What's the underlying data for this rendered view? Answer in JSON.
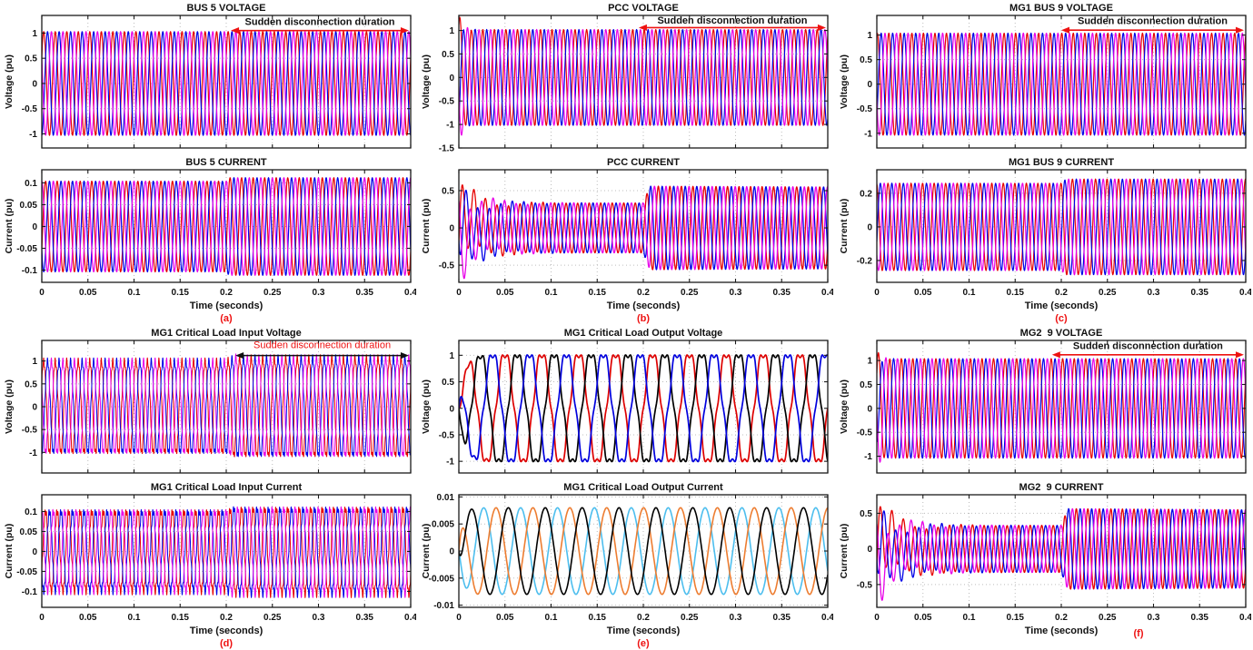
{
  "figure": {
    "background": "#ffffff",
    "columns": 3,
    "axis_color": "#1a1a1a",
    "grid_color": "#bdbdbd",
    "label_color": "#111111",
    "letter_color": "#ee1111",
    "xlabel": "Time (seconds)"
  },
  "annotation_text": "Sudden disconnection duration",
  "chart_data": [
    {
      "id": "bus5-voltage",
      "panel": "a",
      "position": "top",
      "type": "line",
      "title": "BUS 5 VOLTAGE",
      "ylabel": "Voltage (pu)",
      "xlabel": null,
      "show_xtick_labels": false,
      "xlim": [
        0,
        0.4
      ],
      "xticks": [
        0,
        0.05,
        0.1,
        0.15,
        0.2,
        0.25,
        0.3,
        0.35,
        0.4
      ],
      "ylim": [
        -1.28,
        1.35
      ],
      "yticks": [
        1,
        0.5,
        0,
        -0.5,
        -1
      ],
      "grid": true,
      "line_width": 1.2,
      "annotation": {
        "text": "Sudden disconnection duration",
        "text_color": "#111111",
        "text_bold": true,
        "arrow_color": "#ee1111",
        "x_start": 0.205,
        "x_end": 0.398,
        "arrow_y": 1.05,
        "text_y": 1.16
      },
      "waveform": {
        "kind": "three-phase-sine",
        "cycles": 32,
        "base_phase_deg": 30,
        "amplitude": 1.03,
        "samples": 1100,
        "series": [
          {
            "name": "phase-a",
            "color": "#e60000",
            "offset_deg": 0
          },
          {
            "name": "phase-b",
            "color": "#0000e8",
            "offset_deg": -120
          },
          {
            "name": "phase-c",
            "color": "#e800e8",
            "offset_deg": -240
          }
        ]
      }
    },
    {
      "id": "bus5-current",
      "panel": "a",
      "position": "bottom",
      "type": "line",
      "title": "BUS 5 CURRENT",
      "ylabel": "Current (pu)",
      "xlabel": "Time (seconds)",
      "show_xtick_labels": true,
      "xlim": [
        0,
        0.4
      ],
      "xticks": [
        0,
        0.05,
        0.1,
        0.15,
        0.2,
        0.25,
        0.3,
        0.35,
        0.4
      ],
      "ylim": [
        -0.128,
        0.13
      ],
      "yticks": [
        0.1,
        0.05,
        0,
        -0.05,
        -0.1
      ],
      "grid": true,
      "line_width": 1.2,
      "letter": {
        "text": "(a)",
        "position": "below"
      },
      "waveform": {
        "kind": "three-phase-sine",
        "cycles": 32,
        "base_phase_deg": -30,
        "samples": 1100,
        "envelope": [
          [
            0,
            0.2,
            0.104,
            0.104,
            "lin"
          ],
          [
            0.2,
            0.203,
            0.104,
            0.112,
            "lin"
          ],
          [
            0.203,
            0.4,
            0.112,
            0.112,
            "lin"
          ]
        ],
        "series": [
          {
            "name": "phase-a",
            "color": "#e60000",
            "offset_deg": 0
          },
          {
            "name": "phase-b",
            "color": "#0000e8",
            "offset_deg": -120
          },
          {
            "name": "phase-c",
            "color": "#e800e8",
            "offset_deg": -240
          }
        ]
      }
    },
    {
      "id": "pcc-voltage",
      "panel": "b",
      "position": "top",
      "type": "line",
      "title": "PCC VOLTAGE",
      "ylabel": "Voltage (pu)",
      "xlabel": null,
      "show_xtick_labels": false,
      "xlim": [
        0,
        0.4
      ],
      "xticks": [
        0,
        0.05,
        0.1,
        0.15,
        0.2,
        0.25,
        0.3,
        0.35,
        0.4
      ],
      "ylim": [
        -1.5,
        1.32
      ],
      "yticks": [
        1,
        0.5,
        0,
        -0.5,
        -1,
        -1.5
      ],
      "grid": true,
      "line_width": 1.2,
      "annotation": {
        "text": "Sudden disconnection duration",
        "text_color": "#111111",
        "text_bold": true,
        "arrow_color": "#ee1111",
        "x_start": 0.195,
        "x_end": 0.398,
        "arrow_y": 1.06,
        "text_y": 1.15
      },
      "waveform": {
        "kind": "three-phase-sine",
        "cycles": 32,
        "base_phase_deg": 60,
        "samples": 1100,
        "envelope": [
          [
            0,
            0.018,
            1.3,
            1.02,
            "exp"
          ],
          [
            0.018,
            0.4,
            1.02,
            1.02,
            "lin"
          ]
        ],
        "wobble": {
          "amp": 0.22,
          "freq_hz": 55,
          "decay_s": 0.005
        },
        "series": [
          {
            "name": "phase-a",
            "color": "#e60000",
            "offset_deg": 0
          },
          {
            "name": "phase-b",
            "color": "#0000e8",
            "offset_deg": -120
          },
          {
            "name": "phase-c",
            "color": "#e800e8",
            "offset_deg": -240
          }
        ]
      }
    },
    {
      "id": "pcc-current",
      "panel": "b",
      "position": "bottom",
      "type": "line",
      "title": "PCC CURRENT",
      "ylabel": "Current (pu)",
      "xlabel": "Time (seconds)",
      "show_xtick_labels": true,
      "xlim": [
        0,
        0.4
      ],
      "xticks": [
        0,
        0.05,
        0.1,
        0.15,
        0.2,
        0.25,
        0.3,
        0.35,
        0.4
      ],
      "ylim": [
        -0.73,
        0.78
      ],
      "yticks": [
        0.5,
        0,
        -0.5
      ],
      "grid": true,
      "line_width": 1.3,
      "letter": {
        "text": "(b)",
        "position": "below"
      },
      "waveform": {
        "kind": "three-phase-sine",
        "cycles": 32,
        "base_phase_deg": -20,
        "samples": 1100,
        "envelope": [
          [
            0,
            0.05,
            0.6,
            0.335,
            "exp"
          ],
          [
            0.05,
            0.2,
            0.335,
            0.335,
            "lin"
          ],
          [
            0.2,
            0.207,
            0.335,
            0.56,
            "lin"
          ],
          [
            0.207,
            0.4,
            0.56,
            0.55,
            "lin"
          ]
        ],
        "wobble": {
          "amp": 0.26,
          "freq_hz": 14,
          "decay_s": 0.028
        },
        "series": [
          {
            "name": "phase-a",
            "color": "#e60000",
            "offset_deg": 0
          },
          {
            "name": "phase-b",
            "color": "#0000e8",
            "offset_deg": -120
          },
          {
            "name": "phase-c",
            "color": "#e800e8",
            "offset_deg": -240
          }
        ]
      }
    },
    {
      "id": "mg1-bus9-voltage",
      "panel": "c",
      "position": "top",
      "type": "line",
      "title": "MG1 BUS 9 VOLTAGE",
      "ylabel": "Voltage (pu)",
      "xlabel": null,
      "show_xtick_labels": false,
      "xlim": [
        0,
        0.4
      ],
      "xticks": [
        0,
        0.05,
        0.1,
        0.15,
        0.2,
        0.25,
        0.3,
        0.35,
        0.4
      ],
      "ylim": [
        -1.3,
        1.4
      ],
      "yticks": [
        1,
        0.5,
        0,
        -0.5,
        -1
      ],
      "grid": true,
      "line_width": 1.2,
      "annotation": {
        "text": "Sudden disconnection duration",
        "text_color": "#111111",
        "text_bold": true,
        "arrow_color": "#ee1111",
        "x_start": 0.2,
        "x_end": 0.398,
        "arrow_y": 1.1,
        "text_y": 1.22
      },
      "waveform": {
        "kind": "three-phase-sine",
        "cycles": 32,
        "base_phase_deg": 75,
        "amplitude": 1.04,
        "samples": 1100,
        "series": [
          {
            "name": "phase-a",
            "color": "#e60000",
            "offset_deg": 0
          },
          {
            "name": "phase-b",
            "color": "#0000e8",
            "offset_deg": -120
          },
          {
            "name": "phase-c",
            "color": "#e800e8",
            "offset_deg": -240
          }
        ]
      }
    },
    {
      "id": "mg1-bus9-current",
      "panel": "c",
      "position": "bottom",
      "type": "line",
      "title": "MG1 BUS 9 CURRENT",
      "ylabel": "Current (pu)",
      "xlabel": "Time (seconds)",
      "show_xtick_labels": true,
      "xlim": [
        0,
        0.4
      ],
      "xticks": [
        0,
        0.05,
        0.1,
        0.15,
        0.2,
        0.25,
        0.3,
        0.35,
        0.4
      ],
      "ylim": [
        -0.33,
        0.34
      ],
      "yticks": [
        0.2,
        0,
        -0.2
      ],
      "grid": true,
      "line_width": 1.2,
      "letter": {
        "text": "(c)",
        "position": "below"
      },
      "waveform": {
        "kind": "three-phase-sine",
        "cycles": 32,
        "base_phase_deg": 100,
        "samples": 1100,
        "envelope": [
          [
            0,
            0.2,
            0.26,
            0.26,
            "lin"
          ],
          [
            0.2,
            0.205,
            0.26,
            0.285,
            "lin"
          ],
          [
            0.205,
            0.4,
            0.285,
            0.285,
            "lin"
          ]
        ],
        "series": [
          {
            "name": "phase-a",
            "color": "#e60000",
            "offset_deg": 0
          },
          {
            "name": "phase-b",
            "color": "#0000e8",
            "offset_deg": -120
          },
          {
            "name": "phase-c",
            "color": "#e800e8",
            "offset_deg": -240
          }
        ]
      }
    },
    {
      "id": "mg1-critical-load-input-voltage",
      "panel": "d",
      "position": "top",
      "type": "line",
      "title": "MG1 Critical Load Input Voltage",
      "ylabel": "Voltage (pu)",
      "xlabel": null,
      "show_xtick_labels": false,
      "xlim": [
        0,
        0.4
      ],
      "xticks": [
        0,
        0.05,
        0.1,
        0.15,
        0.2,
        0.25,
        0.3,
        0.35,
        0.4
      ],
      "ylim": [
        -1.45,
        1.45
      ],
      "yticks": [
        1,
        0.5,
        0,
        -0.5,
        -1
      ],
      "grid": true,
      "line_width": 1.0,
      "annotation": {
        "text": "Sudden disconnection duration",
        "text_color": "#ee1111",
        "text_bold": false,
        "arrow_color": "#111111",
        "x_start": 0.21,
        "x_end": 0.398,
        "arrow_y": 1.12,
        "text_y": 1.28
      },
      "waveform": {
        "kind": "three-phase-sine",
        "cycles": 32,
        "base_phase_deg": 30,
        "samples": 2600,
        "envelope": [
          [
            0,
            0.2,
            1.0,
            1.0,
            "lin"
          ],
          [
            0.2,
            0.212,
            1.0,
            1.1,
            "lin"
          ],
          [
            0.212,
            0.4,
            1.07,
            1.07,
            "lin"
          ]
        ],
        "ripple": {
          "amp": 0.07,
          "freq_hz": 640
        },
        "series": [
          {
            "name": "phase-a",
            "color": "#e60000",
            "offset_deg": 0
          },
          {
            "name": "phase-b",
            "color": "#0000e8",
            "offset_deg": -120
          },
          {
            "name": "phase-c",
            "color": "#e800e8",
            "offset_deg": -240
          }
        ]
      }
    },
    {
      "id": "mg1-critical-load-input-current",
      "panel": "d",
      "position": "bottom",
      "type": "line",
      "title": "MG1 Critical Load Input Current",
      "ylabel": "Current (pu)",
      "xlabel": "Time (seconds)",
      "show_xtick_labels": true,
      "xlim": [
        0,
        0.4
      ],
      "xticks": [
        0,
        0.05,
        0.1,
        0.15,
        0.2,
        0.25,
        0.3,
        0.35,
        0.4
      ],
      "ylim": [
        -0.14,
        0.142
      ],
      "yticks": [
        0.1,
        0.05,
        0,
        -0.05,
        -0.1
      ],
      "grid": true,
      "line_width": 1.0,
      "letter": {
        "text": "(d)",
        "position": "below"
      },
      "waveform": {
        "kind": "three-phase-sine",
        "cycles": 32,
        "base_phase_deg": -30,
        "samples": 2600,
        "envelope": [
          [
            0,
            0.2,
            0.1,
            0.1,
            "lin"
          ],
          [
            0.2,
            0.21,
            0.1,
            0.11,
            "lin"
          ],
          [
            0.21,
            0.4,
            0.107,
            0.107,
            "lin"
          ]
        ],
        "ripple": {
          "amp": 0.009,
          "freq_hz": 640
        },
        "series": [
          {
            "name": "phase-a",
            "color": "#e60000",
            "offset_deg": 0
          },
          {
            "name": "phase-b",
            "color": "#0000e8",
            "offset_deg": -120
          },
          {
            "name": "phase-c",
            "color": "#e800e8",
            "offset_deg": -240
          }
        ]
      }
    },
    {
      "id": "mg1-critical-load-output-voltage",
      "panel": "e",
      "position": "top",
      "type": "line",
      "title": "MG1 Critical Load Output Voltage",
      "ylabel": "Voltage (pu)",
      "xlabel": null,
      "show_xtick_labels": false,
      "xlim": [
        0,
        0.4
      ],
      "xticks": [
        0,
        0.05,
        0.1,
        0.15,
        0.2,
        0.25,
        0.3,
        0.35,
        0.4
      ],
      "ylim": [
        -1.22,
        1.28
      ],
      "yticks": [
        1,
        0.5,
        0,
        -0.5,
        -1
      ],
      "grid": true,
      "line_width": 1.7,
      "annotation": null,
      "waveform": {
        "kind": "three-phase-sine",
        "cycles": 10,
        "base_phase_deg": 0,
        "amplitude": 1.05,
        "samples": 700,
        "harmonic": {
          "n": 5,
          "amp": 0.09,
          "phase_deg": 180
        },
        "soft_start_s": 0.006,
        "series": [
          {
            "name": "phase-a",
            "color": "#dd0000",
            "offset_deg": 0
          },
          {
            "name": "phase-b",
            "color": "#000000",
            "offset_deg": -120
          },
          {
            "name": "phase-c",
            "color": "#0000dd",
            "offset_deg": -240
          }
        ]
      }
    },
    {
      "id": "mg1-critical-load-output-current",
      "panel": "e",
      "position": "bottom",
      "type": "line",
      "title": "MG1 Critical Load Output Current",
      "ylabel": "Current (pu)",
      "xlabel": "Time (seconds)",
      "show_xtick_labels": true,
      "xlim": [
        0,
        0.4
      ],
      "xticks": [
        0,
        0.05,
        0.1,
        0.15,
        0.2,
        0.25,
        0.3,
        0.35,
        0.4
      ],
      "ylim": [
        -0.0104,
        0.0104
      ],
      "yticks": [
        0.01,
        0.005,
        0,
        -0.005,
        -0.01
      ],
      "grid": true,
      "line_width": 1.6,
      "letter": {
        "text": "(e)",
        "position": "below"
      },
      "waveform": {
        "kind": "three-phase-sine",
        "cycles": 10,
        "base_phase_deg": -153,
        "amplitude": 0.008,
        "samples": 700,
        "soft_start_s": 0.004,
        "series": [
          {
            "name": "phase-a",
            "color": "#4dbeee",
            "offset_deg": 0
          },
          {
            "name": "phase-b",
            "color": "#ed7d31",
            "offset_deg": -120
          },
          {
            "name": "phase-c",
            "color": "#000000",
            "offset_deg": -240
          }
        ]
      }
    },
    {
      "id": "mg2-9-voltage",
      "panel": "f",
      "position": "top",
      "type": "line",
      "title": "MG2  9 VOLTAGE",
      "ylabel": "Voltage (pu)",
      "xlabel": null,
      "show_xtick_labels": false,
      "xlim": [
        0,
        0.4
      ],
      "xticks": [
        0,
        0.05,
        0.1,
        0.15,
        0.2,
        0.25,
        0.3,
        0.35,
        0.4
      ],
      "ylim": [
        -1.35,
        1.42
      ],
      "yticks": [
        1,
        0.5,
        0,
        -0.5,
        -1
      ],
      "grid": true,
      "line_width": 1.2,
      "annotation": {
        "text": "Sudden disconnection duration",
        "text_color": "#111111",
        "text_bold": true,
        "arrow_color": "#ee1111",
        "x_start": 0.19,
        "x_end": 0.398,
        "arrow_y": 1.12,
        "text_y": 1.24
      },
      "waveform": {
        "kind": "three-phase-sine",
        "cycles": 32,
        "base_phase_deg": 45,
        "amplitude": 1.04,
        "samples": 1100,
        "wobble": {
          "amp": 0.35,
          "freq_hz": 60,
          "decay_s": 0.0035
        },
        "series": [
          {
            "name": "phase-a",
            "color": "#e60000",
            "offset_deg": 0
          },
          {
            "name": "phase-b",
            "color": "#0000e8",
            "offset_deg": -120
          },
          {
            "name": "phase-c",
            "color": "#e800e8",
            "offset_deg": -240
          }
        ]
      }
    },
    {
      "id": "mg2-9-current",
      "panel": "f",
      "position": "bottom",
      "type": "line",
      "title": "MG2  9 CURRENT",
      "ylabel": "Current (pu)",
      "xlabel": "Time (seconds)",
      "show_xtick_labels": true,
      "xlim": [
        0,
        0.4
      ],
      "xticks": [
        0,
        0.05,
        0.1,
        0.15,
        0.2,
        0.25,
        0.3,
        0.35,
        0.4
      ],
      "ylim": [
        -0.82,
        0.76
      ],
      "yticks": [
        0.5,
        0,
        -0.5
      ],
      "grid": true,
      "line_width": 1.3,
      "letter": {
        "text": "(f)",
        "position": "beside"
      },
      "waveform": {
        "kind": "three-phase-sine",
        "cycles": 32,
        "base_phase_deg": -20,
        "samples": 1100,
        "envelope": [
          [
            0,
            0.05,
            0.62,
            0.33,
            "exp"
          ],
          [
            0.05,
            0.2,
            0.33,
            0.33,
            "lin"
          ],
          [
            0.2,
            0.207,
            0.33,
            0.57,
            "lin"
          ],
          [
            0.207,
            0.4,
            0.565,
            0.55,
            "lin"
          ]
        ],
        "wobble": {
          "amp": 0.3,
          "freq_hz": 13,
          "decay_s": 0.03
        },
        "series": [
          {
            "name": "phase-a",
            "color": "#e60000",
            "offset_deg": 0
          },
          {
            "name": "phase-b",
            "color": "#0000e8",
            "offset_deg": -120
          },
          {
            "name": "phase-c",
            "color": "#e800e8",
            "offset_deg": -240
          }
        ]
      }
    }
  ]
}
